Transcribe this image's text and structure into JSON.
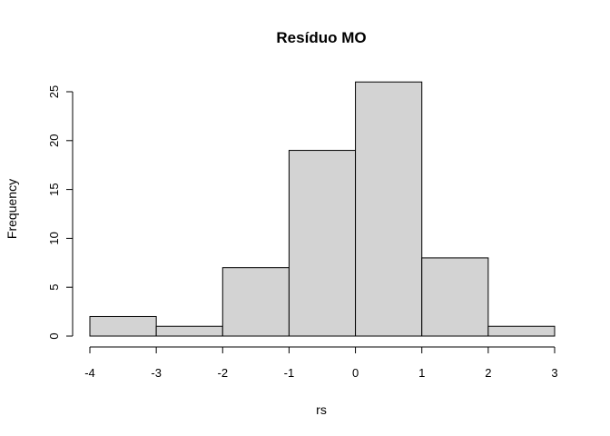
{
  "chart_data": {
    "type": "bar",
    "title": "Resíduo  MO",
    "xlabel": "rs",
    "ylabel": "Frequency",
    "bins": [
      {
        "from": -4,
        "to": -3,
        "count": 2
      },
      {
        "from": -3,
        "to": -2,
        "count": 1
      },
      {
        "from": -2,
        "to": -1,
        "count": 7
      },
      {
        "from": -1,
        "to": 0,
        "count": 19
      },
      {
        "from": 0,
        "to": 1,
        "count": 26
      },
      {
        "from": 1,
        "to": 2,
        "count": 8
      },
      {
        "from": 2,
        "to": 3,
        "count": 1
      }
    ],
    "xlim": [
      -4,
      3
    ],
    "ylim": [
      0,
      26
    ],
    "xticks": [
      "-4",
      "-3",
      "-2",
      "-1",
      "0",
      "1",
      "2",
      "3"
    ],
    "yticks": [
      "0",
      "5",
      "10",
      "15",
      "20",
      "25"
    ],
    "grid": false,
    "colors": {
      "bar_fill": "#d3d3d3",
      "bar_stroke": "#000000"
    }
  }
}
